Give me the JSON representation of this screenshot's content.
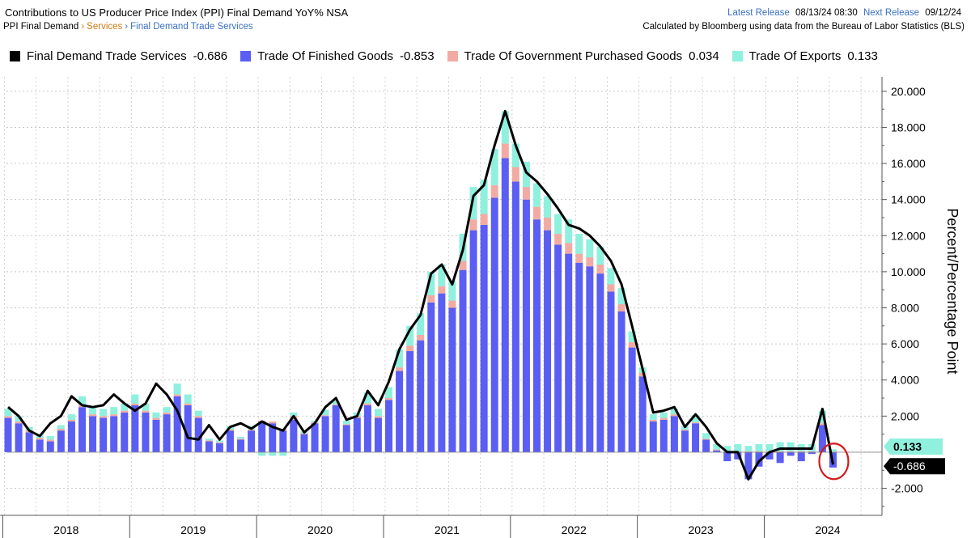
{
  "header": {
    "title": "Contributions to US Producer Price Index (PPI) Final Demand YoY% NSA",
    "breadcrumb": [
      "PPI Final Demand",
      "Services",
      "Final Demand Trade Services"
    ],
    "latest_release_label": "Latest Release",
    "latest_release_value": "08/13/24 08:30",
    "next_release_label": "Next Release",
    "next_release_value": "09/12/24",
    "calc_note": "Calculated by Bloomberg using data from the Bureau of Labor Statistics (BLS)"
  },
  "legend": [
    {
      "label": "Final Demand Trade Services",
      "value": "-0.686",
      "color": "#000000"
    },
    {
      "label": "Trade Of Finished Goods",
      "value": "-0.853",
      "color": "#5b5ef2"
    },
    {
      "label": "Trade Of Government Purchased Goods",
      "value": "0.034",
      "color": "#f2aba3"
    },
    {
      "label": "Trade Of Exports",
      "value": "0.133",
      "color": "#8ff0de"
    }
  ],
  "chart_data": {
    "type": "bar",
    "stacked": true,
    "title": "Contributions to US Producer Price Index (PPI) Final Demand YoY% NSA",
    "ylabel": "Percent/Percentage Point",
    "ylim": [
      -3.5,
      20.8
    ],
    "y_ticks": [
      "20.000",
      "18.000",
      "16.000",
      "14.000",
      "12.000",
      "10.000",
      "8.000",
      "6.000",
      "4.000",
      "2.000",
      "-2.000"
    ],
    "grid": true,
    "x_start": "2018-01",
    "year_labels": [
      "2018",
      "2019",
      "2020",
      "2021",
      "2022",
      "2023",
      "2024"
    ],
    "series": [
      {
        "name": "Trade Of Finished Goods",
        "color": "#5b5ef2",
        "values": [
          1.9,
          1.6,
          1.1,
          0.7,
          0.6,
          1.2,
          1.7,
          2.5,
          2.0,
          1.9,
          2.0,
          2.2,
          2.6,
          2.2,
          1.8,
          2.1,
          3.1,
          2.6,
          1.9,
          0.6,
          0.5,
          1.2,
          0.7,
          1.2,
          1.7,
          1.6,
          1.2,
          1.8,
          1.0,
          1.6,
          2.0,
          2.6,
          1.5,
          1.9,
          2.6,
          1.9,
          2.9,
          4.5,
          5.6,
          6.2,
          8.3,
          8.8,
          8.0,
          10.1,
          12.3,
          12.6,
          14.1,
          16.3,
          15.0,
          14.0,
          12.9,
          12.3,
          11.5,
          11.0,
          10.5,
          10.3,
          9.9,
          8.9,
          7.8,
          5.8,
          4.2,
          1.7,
          1.8,
          2.0,
          1.2,
          1.6,
          0.7,
          0.1,
          -0.5,
          -0.4,
          -1.5,
          -0.8,
          -0.4,
          -0.6,
          -0.2,
          -0.5,
          -0.1,
          1.5,
          -0.853
        ]
      },
      {
        "name": "Trade Of Government Purchased Goods",
        "color": "#f2aba3",
        "values": [
          0.1,
          0.1,
          0.1,
          0.1,
          0.1,
          0.1,
          0.1,
          0.1,
          0.1,
          0.1,
          0.1,
          0.1,
          0.1,
          0.1,
          0.1,
          0.1,
          0.1,
          0.1,
          0.1,
          0.05,
          0.05,
          0.05,
          0.05,
          0.05,
          0.05,
          0.1,
          0.1,
          0.2,
          0.05,
          0.05,
          0.05,
          0.05,
          0.05,
          0.1,
          0.1,
          0.1,
          0.1,
          0.2,
          0.3,
          0.3,
          0.4,
          0.4,
          0.4,
          0.5,
          0.6,
          0.6,
          0.7,
          0.8,
          0.8,
          0.7,
          0.7,
          0.7,
          0.6,
          0.6,
          0.5,
          0.5,
          0.5,
          0.4,
          0.4,
          0.3,
          0.2,
          0.1,
          0.1,
          0.1,
          0.05,
          0.05,
          0.05,
          0.05,
          0.05,
          0.05,
          0.05,
          0.05,
          0.05,
          0.05,
          0.05,
          0.05,
          0.05,
          0.1,
          0.034
        ]
      },
      {
        "name": "Trade Of Exports",
        "color": "#8ff0de",
        "values": [
          0.4,
          0.3,
          0.2,
          0.2,
          0.2,
          0.2,
          0.3,
          0.5,
          0.4,
          0.4,
          0.4,
          0.4,
          0.5,
          0.4,
          0.3,
          0.3,
          0.6,
          0.5,
          0.3,
          0.1,
          0.1,
          0.2,
          0.1,
          0.2,
          -0.2,
          -0.2,
          -0.2,
          0.2,
          0.1,
          0.1,
          0.3,
          0.2,
          0.2,
          0.2,
          0.6,
          0.4,
          0.6,
          1.0,
          1.1,
          1.2,
          1.3,
          1.2,
          1.1,
          1.5,
          1.8,
          1.9,
          2.0,
          1.8,
          1.3,
          1.4,
          1.3,
          1.2,
          1.1,
          1.3,
          1.1,
          1.0,
          1.0,
          0.9,
          0.9,
          0.6,
          0.3,
          0.3,
          0.3,
          0.3,
          0.2,
          0.4,
          0.3,
          0.3,
          0.3,
          0.4,
          0.3,
          0.4,
          0.4,
          0.5,
          0.5,
          0.4,
          0.4,
          0.7,
          0.133
        ]
      },
      {
        "name": "Final Demand Trade Services",
        "type": "line",
        "color": "#000000",
        "values": [
          2.5,
          2.0,
          1.2,
          0.9,
          1.6,
          2.0,
          3.1,
          2.6,
          2.5,
          2.6,
          3.2,
          2.7,
          2.3,
          2.7,
          3.8,
          3.2,
          2.3,
          0.8,
          0.7,
          1.5,
          0.7,
          1.4,
          1.6,
          1.3,
          1.7,
          1.4,
          1.2,
          2.0,
          1.1,
          1.6,
          2.5,
          3.0,
          1.8,
          2.0,
          3.4,
          2.6,
          3.9,
          5.7,
          6.8,
          7.6,
          9.9,
          10.4,
          9.3,
          11.2,
          14.2,
          14.8,
          17.0,
          18.9,
          17.0,
          15.5,
          15.0,
          14.3,
          13.5,
          12.6,
          12.4,
          12.0,
          11.4,
          10.6,
          9.3,
          7.0,
          4.6,
          2.2,
          2.3,
          2.5,
          1.4,
          2.1,
          1.4,
          0.5,
          0.0,
          0.0,
          -1.5,
          -0.5,
          0.0,
          0.2,
          0.2,
          0.2,
          0.2,
          2.4,
          -0.686
        ]
      }
    ],
    "last_value_labels": [
      {
        "text": "0.133",
        "color": "#8ff0de",
        "value": 0.133
      },
      {
        "text": "-0.686",
        "color": "#000000",
        "value": -0.686
      }
    ]
  }
}
